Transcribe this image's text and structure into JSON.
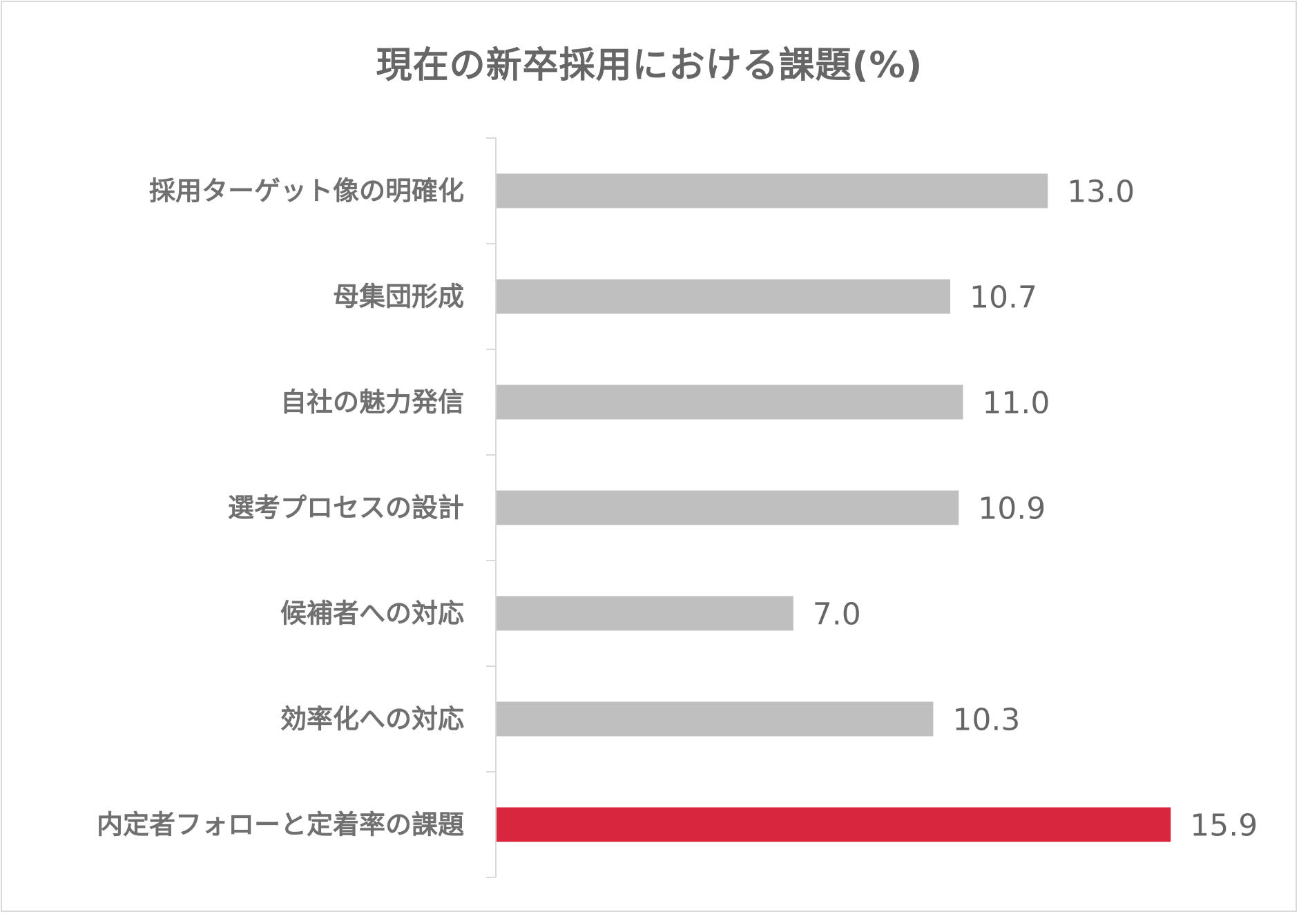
{
  "chart_data": {
    "type": "bar",
    "orientation": "horizontal",
    "title": "現在の新卒採用における課題(%)",
    "categories": [
      "採用ターゲット像の明確化",
      "母集団形成",
      "自社の魅力発信",
      "選考プロセスの設計",
      "候補者への対応",
      "効率化への対応",
      "内定者フォローと定着率の課題"
    ],
    "values": [
      13.0,
      10.7,
      11.0,
      10.9,
      7.0,
      10.3,
      15.9
    ],
    "value_labels": [
      "13.0",
      "10.7",
      "11.0",
      "10.9",
      "7.0",
      "10.3",
      "15.9"
    ],
    "highlight_index": 6,
    "colors": {
      "bar": "#bfbfbf",
      "highlight": "#d7263d",
      "axis": "#d9d9d9"
    },
    "xlim": [
      0,
      16.5
    ],
    "grid": false,
    "legend": "none"
  }
}
